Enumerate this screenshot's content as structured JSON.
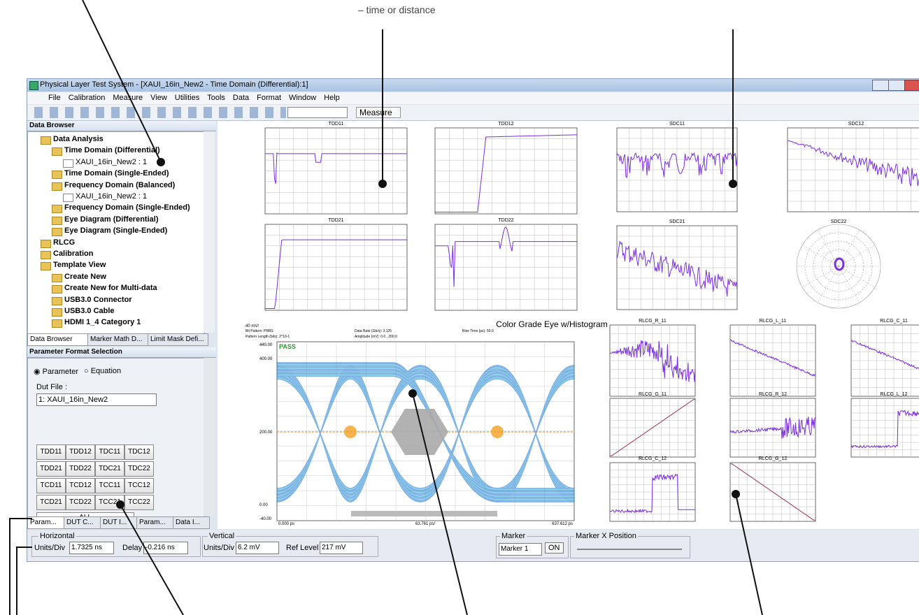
{
  "callout": "– time or distance",
  "window": {
    "title": "Physical Layer Test System - [XAUI_16in_New2 - Time Domain (Differential):1]",
    "menu": [
      "File",
      "Calibration",
      "Measure",
      "View",
      "Utilities",
      "Tools",
      "Data",
      "Format",
      "Window",
      "Help"
    ],
    "toolbar_button": "Measure"
  },
  "data_browser": {
    "title": "Data Browser",
    "tree": [
      "Data Analysis",
      "Time Domain (Differential)",
      "XAUI_16in_New2 : 1",
      "Time Domain (Single-Ended)",
      "Frequency Domain (Balanced)",
      "XAUI_16in_New2 : 1",
      "Frequency Domain (Single-Ended)",
      "Eye Diagram (Differential)",
      "Eye Diagram (Single-Ended)",
      "RLCG",
      "Calibration",
      "Template View",
      "Create New",
      "Create New for Multi-data",
      "USB3.0 Connector",
      "USB3.0 Cable",
      "HDMI 1_4 Category 1"
    ],
    "tabs": [
      "Data Browser",
      "Marker Math D...",
      "Limit Mask Defi..."
    ]
  },
  "parameter_format": {
    "title": "Parameter Format Selection",
    "options": [
      "Parameter",
      "Equation"
    ],
    "dut_label": "Dut File :",
    "dut_value": "1: XAUI_16in_New2",
    "buttons": [
      [
        "TDD11",
        "TDD12",
        "TDC11",
        "TDC12"
      ],
      [
        "TDD21",
        "TDD22",
        "TDC21",
        "TDC22"
      ],
      [
        "TCD11",
        "TCD12",
        "TCC11",
        "TCC12"
      ],
      [
        "TCD21",
        "TCD22",
        "TCC21",
        "TCC22"
      ]
    ],
    "all": "ALL",
    "tabs": [
      "Param...",
      "DUT C...",
      "DUT I...",
      "Param...",
      "Data I..."
    ]
  },
  "controls": {
    "horizontal": {
      "title": "Horizontal",
      "units_label": "Units/Div",
      "units_value": "1.7325 ns",
      "delay_label": "Delay",
      "delay_value": "-0.216 ns"
    },
    "vertical": {
      "title": "Vertical",
      "units_label": "Units/Div",
      "units_value": "6.2 mV",
      "ref_label": "Ref Level",
      "ref_value": "217 mV"
    },
    "marker": {
      "title": "Marker",
      "value": "Marker 1",
      "button": "ON",
      "x_position": "Marker X Position"
    }
  },
  "plots": {
    "tdd": [
      "TDD11",
      "TDD12",
      "TDD21",
      "TDD22"
    ],
    "sdc": [
      "SDC11",
      "SDC12",
      "SDC21",
      "SDC22"
    ],
    "rlcg": [
      "RLCG_R_11",
      "RLCG_L_11",
      "RLCG_C_11",
      "RLCG_G_11",
      "RLCG_R_12",
      "RLCG_L_12",
      "RLCG_C_12",
      "RLCG_G_12"
    ]
  },
  "eye": {
    "title": "Color Grade Eye w/Histogram",
    "scale": "40 mV/",
    "info": [
      "Bit Pattern:  PRBS",
      "Pattern Length (bits):  2^10-1",
      "Data Rate (Gb/s):  3.125",
      "Amplitude (mV):  0.0 , 200.0",
      "Rise Time (ps):  50.0"
    ],
    "status": "PASS",
    "y_labels": [
      "440.00",
      "400.00",
      "200.00",
      "0.00",
      "-40.00"
    ],
    "x_labels": [
      "0.000 ps",
      "63.761 ps/",
      "637.612 ps"
    ]
  }
}
